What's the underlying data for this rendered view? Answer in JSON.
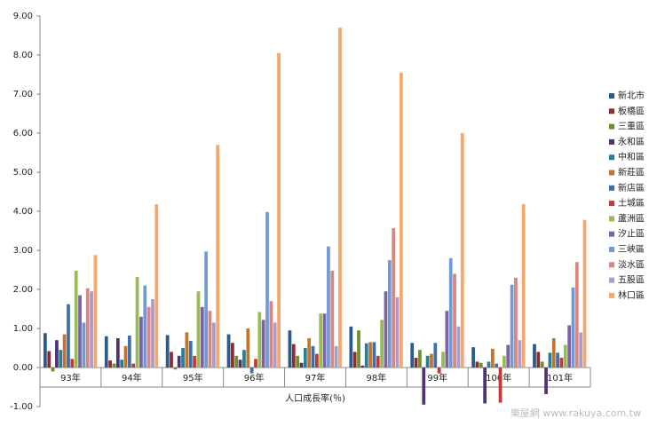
{
  "chart_data": {
    "type": "bar",
    "x_label": "人口成長率(％)",
    "watermark": "樂屋網 www.rakuya.com.tw",
    "categories": [
      "93年",
      "94年",
      "95年",
      "96年",
      "97年",
      "98年",
      "99年",
      "100年",
      "101年"
    ],
    "ylim": [
      -1,
      9
    ],
    "yticks": [
      {
        "value": -1,
        "label": "-1.00"
      },
      {
        "value": 0,
        "label": "0.00"
      },
      {
        "value": 1,
        "label": "1.00"
      },
      {
        "value": 2,
        "label": "2.00"
      },
      {
        "value": 3,
        "label": "3.00"
      },
      {
        "value": 4,
        "label": "4.00"
      },
      {
        "value": 5,
        "label": "5.00"
      },
      {
        "value": 6,
        "label": "6.00"
      },
      {
        "value": 7,
        "label": "7.00"
      },
      {
        "value": 8,
        "label": "8.00"
      },
      {
        "value": 9,
        "label": "9.00"
      }
    ],
    "grid": false,
    "legend": "right",
    "series": [
      {
        "name": "新北市",
        "color": "#2b5a8c",
        "values": [
          0.88,
          0.8,
          0.83,
          0.85,
          0.95,
          1.05,
          0.63,
          0.52,
          0.6
        ]
      },
      {
        "name": "板橋區",
        "color": "#8e2b2b",
        "values": [
          0.42,
          0.18,
          0.4,
          0.63,
          0.6,
          0.4,
          0.25,
          0.15,
          0.4
        ]
      },
      {
        "name": "三重區",
        "color": "#6f8f2a",
        "values": [
          -0.1,
          0.1,
          -0.05,
          0.3,
          0.3,
          0.95,
          0.45,
          0.12,
          0.15
        ]
      },
      {
        "name": "永和區",
        "color": "#4e3472",
        "values": [
          0.7,
          0.75,
          0.3,
          0.2,
          0.12,
          0.05,
          -0.95,
          -0.92,
          -0.68
        ]
      },
      {
        "name": "中和區",
        "color": "#23809a",
        "values": [
          0.45,
          0.2,
          0.5,
          0.45,
          0.5,
          0.62,
          0.3,
          0.15,
          0.38
        ]
      },
      {
        "name": "新莊區",
        "color": "#c4732a",
        "values": [
          0.85,
          0.55,
          0.9,
          1.0,
          0.75,
          0.65,
          0.35,
          0.48,
          0.75
        ]
      },
      {
        "name": "新店區",
        "color": "#3b70b0",
        "values": [
          1.62,
          0.82,
          0.68,
          -0.15,
          0.55,
          0.65,
          0.63,
          0.1,
          0.38
        ]
      },
      {
        "name": "土城區",
        "color": "#c23a35",
        "values": [
          0.22,
          0.1,
          0.3,
          0.22,
          0.35,
          0.3,
          -0.15,
          -0.9,
          0.25
        ]
      },
      {
        "name": "蘆洲區",
        "color": "#98bb55",
        "values": [
          2.48,
          2.32,
          1.95,
          1.42,
          1.38,
          1.22,
          0.4,
          0.3,
          0.58
        ]
      },
      {
        "name": "汐止區",
        "color": "#7d62a6",
        "values": [
          1.85,
          1.3,
          1.55,
          1.22,
          1.38,
          1.95,
          1.45,
          0.58,
          1.08
        ]
      },
      {
        "name": "三峽區",
        "color": "#6f9ad6",
        "values": [
          1.15,
          2.1,
          2.97,
          3.98,
          3.1,
          2.75,
          2.8,
          2.12,
          2.05
        ]
      },
      {
        "name": "淡水區",
        "color": "#d98580",
        "values": [
          2.03,
          1.55,
          1.45,
          1.7,
          2.48,
          3.57,
          2.4,
          2.3,
          2.7
        ]
      },
      {
        "name": "五股區",
        "color": "#a99ccc",
        "values": [
          1.95,
          1.75,
          1.15,
          1.15,
          0.55,
          1.8,
          1.05,
          0.7,
          0.9
        ]
      },
      {
        "name": "林口區",
        "color": "#f5a66a",
        "values": [
          2.88,
          4.18,
          5.7,
          8.05,
          8.7,
          7.55,
          6.0,
          4.18,
          3.78
        ]
      }
    ]
  }
}
